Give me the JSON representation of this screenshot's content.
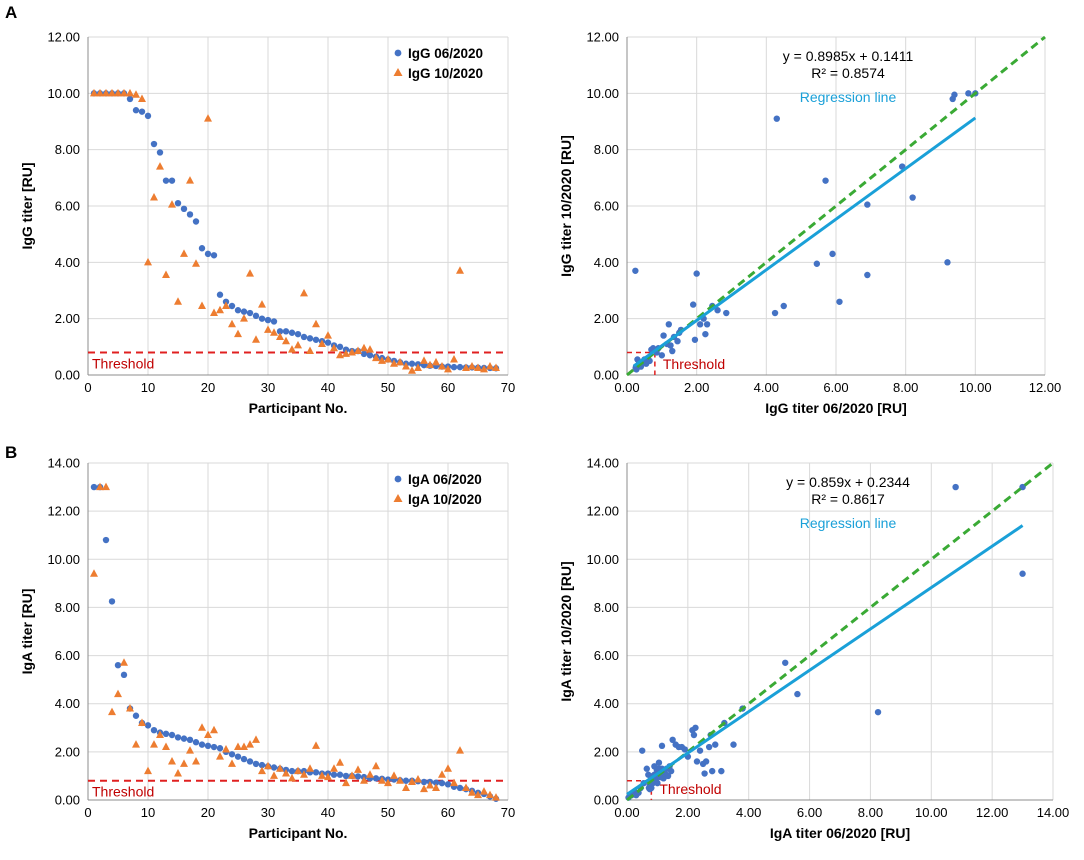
{
  "panels": [
    {
      "label": "A"
    },
    {
      "label": "B"
    }
  ],
  "colors": {
    "blue": "#4472c4",
    "orange": "#ed7d31",
    "threshold": "#e02020",
    "regression": "#1aa0d8",
    "identity": "#3aaa35"
  },
  "chart_data": [
    {
      "id": "igg-participants",
      "type": "scatter",
      "xlabel": "Participant No.",
      "ylabel": "IgG titer [RU]",
      "xlim": [
        0,
        70
      ],
      "ylim": [
        0,
        12
      ],
      "xticks": [
        0,
        10,
        20,
        30,
        40,
        50,
        60,
        70
      ],
      "xtick_labels": [
        "0",
        "10",
        "20",
        "30",
        "40",
        "50",
        "60",
        "70"
      ],
      "yticks": [
        0,
        2,
        4,
        6,
        8,
        10,
        12
      ],
      "ytick_labels": [
        "0.00",
        "2.00",
        "4.00",
        "6.00",
        "8.00",
        "10.00",
        "12.00"
      ],
      "legend_position": "top-right",
      "threshold": {
        "y": 0.8,
        "label": "Threshold"
      },
      "series": [
        {
          "name": "IgG 06/2020",
          "marker": "circle",
          "color": "#4472c4",
          "x": [
            1,
            2,
            3,
            4,
            5,
            6,
            7,
            8,
            9,
            10,
            11,
            12,
            13,
            14,
            15,
            16,
            17,
            18,
            19,
            20,
            21,
            22,
            23,
            24,
            25,
            26,
            27,
            28,
            29,
            30,
            31,
            32,
            33,
            34,
            35,
            36,
            37,
            38,
            39,
            40,
            41,
            42,
            43,
            44,
            45,
            46,
            47,
            48,
            49,
            50,
            51,
            52,
            53,
            54,
            55,
            56,
            57,
            58,
            59,
            60,
            61,
            62,
            63,
            64,
            65,
            66,
            67,
            68
          ],
          "y": [
            10,
            10,
            10,
            10,
            10,
            10,
            9.8,
            9.4,
            9.35,
            9.2,
            8.2,
            7.9,
            6.9,
            6.9,
            6.1,
            5.9,
            5.7,
            5.45,
            4.5,
            4.3,
            4.25,
            2.85,
            2.6,
            2.45,
            2.3,
            2.25,
            2.2,
            2.1,
            2.0,
            1.95,
            1.9,
            1.55,
            1.55,
            1.5,
            1.45,
            1.35,
            1.3,
            1.25,
            1.2,
            1.15,
            1.05,
            1.0,
            0.9,
            0.85,
            0.85,
            0.75,
            0.7,
            0.65,
            0.6,
            0.55,
            0.5,
            0.45,
            0.4,
            0.4,
            0.38,
            0.35,
            0.33,
            0.32,
            0.3,
            0.3,
            0.28,
            0.28,
            0.27,
            0.27,
            0.26,
            0.25,
            0.25,
            0.24
          ]
        },
        {
          "name": "IgG 10/2020",
          "marker": "triangle",
          "color": "#ed7d31",
          "x": [
            1,
            2,
            3,
            4,
            5,
            6,
            7,
            8,
            9,
            10,
            11,
            12,
            13,
            14,
            15,
            16,
            17,
            18,
            19,
            20,
            21,
            22,
            23,
            24,
            25,
            26,
            27,
            28,
            29,
            30,
            31,
            32,
            33,
            34,
            35,
            36,
            37,
            38,
            39,
            40,
            41,
            42,
            43,
            44,
            45,
            46,
            47,
            48,
            49,
            50,
            51,
            52,
            53,
            54,
            55,
            56,
            57,
            58,
            59,
            60,
            61,
            62,
            63,
            64,
            65,
            66,
            67,
            68
          ],
          "y": [
            10,
            10,
            10,
            10,
            10,
            10,
            10,
            9.95,
            9.8,
            4.0,
            6.3,
            7.4,
            3.55,
            6.05,
            2.6,
            4.3,
            6.9,
            3.95,
            2.45,
            9.1,
            2.2,
            2.3,
            2.45,
            1.8,
            1.45,
            2.0,
            3.6,
            1.25,
            2.5,
            1.6,
            1.5,
            1.35,
            1.2,
            0.9,
            1.05,
            2.9,
            0.85,
            1.8,
            1.1,
            1.4,
            0.95,
            0.7,
            0.75,
            0.8,
            0.85,
            0.95,
            0.9,
            0.6,
            0.5,
            0.55,
            0.4,
            0.45,
            0.3,
            0.15,
            0.25,
            0.5,
            0.35,
            0.45,
            0.3,
            0.2,
            0.55,
            3.7,
            0.25,
            0.3,
            0.25,
            0.2,
            0.3,
            0.25
          ]
        }
      ]
    },
    {
      "id": "igg-correlation",
      "type": "scatter",
      "xlabel": "IgG titer 06/2020 [RU]",
      "ylabel": "IgG titer 10/2020 [RU]",
      "xlim": [
        0,
        12
      ],
      "ylim": [
        0,
        12
      ],
      "xticks": [
        0,
        2,
        4,
        6,
        8,
        10,
        12
      ],
      "xtick_labels": [
        "0.00",
        "2.00",
        "4.00",
        "6.00",
        "8.00",
        "10.00",
        "12.00"
      ],
      "yticks": [
        0,
        2,
        4,
        6,
        8,
        10,
        12
      ],
      "ytick_labels": [
        "0.00",
        "2.00",
        "4.00",
        "6.00",
        "8.00",
        "10.00",
        "12.00"
      ],
      "threshold": {
        "value": 0.8,
        "label": "Threshold"
      },
      "equation": "y = 0.8985x + 0.1411",
      "r_squared": "R² = 0.8574",
      "regression_label": "Regression line",
      "regression": {
        "slope": 0.8985,
        "intercept": 0.1411,
        "x_range": [
          0.2,
          10
        ]
      },
      "identity_line": {
        "x_range": [
          0,
          12
        ]
      },
      "series": [
        {
          "name": "IgG 10/2020 vs 06/2020",
          "marker": "circle",
          "color": "#4472c4",
          "x": [
            0.24,
            0.25,
            0.26,
            0.27,
            0.3,
            0.3,
            0.35,
            0.4,
            0.45,
            0.5,
            0.55,
            0.6,
            0.65,
            0.7,
            0.75,
            0.85,
            0.9,
            1.0,
            1.05,
            1.15,
            1.2,
            1.25,
            1.3,
            1.35,
            1.45,
            1.5,
            1.55,
            1.9,
            1.95,
            2.0,
            2.1,
            2.2,
            2.25,
            2.3,
            2.45,
            2.6,
            2.85,
            4.25,
            4.3,
            4.5,
            5.45,
            5.7,
            5.9,
            6.1,
            6.9,
            6.9,
            7.9,
            8.2,
            9.2,
            9.35,
            9.4,
            9.8,
            10
          ],
          "y": [
            3.7,
            0.25,
            0.3,
            0.2,
            0.3,
            0.55,
            0.45,
            0.3,
            0.45,
            0.55,
            0.4,
            0.6,
            0.5,
            0.9,
            0.95,
            0.8,
            0.95,
            0.7,
            1.4,
            1.1,
            1.8,
            1.05,
            0.85,
            1.35,
            1.2,
            1.5,
            1.6,
            2.5,
            1.25,
            3.6,
            1.8,
            2.0,
            1.45,
            1.8,
            2.45,
            2.3,
            2.2,
            2.2,
            9.1,
            2.45,
            3.95,
            6.9,
            4.3,
            2.6,
            6.05,
            3.55,
            7.4,
            6.3,
            4.0,
            9.8,
            9.95,
            10,
            10
          ]
        }
      ]
    },
    {
      "id": "iga-participants",
      "type": "scatter",
      "xlabel": "Participant No.",
      "ylabel": "IgA titer [RU]",
      "xlim": [
        0,
        70
      ],
      "ylim": [
        0,
        14
      ],
      "xticks": [
        0,
        10,
        20,
        30,
        40,
        50,
        60,
        70
      ],
      "xtick_labels": [
        "0",
        "10",
        "20",
        "30",
        "40",
        "50",
        "60",
        "70"
      ],
      "yticks": [
        0,
        2,
        4,
        6,
        8,
        10,
        12,
        14
      ],
      "ytick_labels": [
        "0.00",
        "2.00",
        "4.00",
        "6.00",
        "8.00",
        "10.00",
        "12.00",
        "14.00"
      ],
      "legend_position": "top-right",
      "threshold": {
        "y": 0.8,
        "label": "Threshold"
      },
      "series": [
        {
          "name": "IgA 06/2020",
          "marker": "circle",
          "color": "#4472c4",
          "x": [
            1,
            2,
            3,
            4,
            5,
            6,
            7,
            8,
            9,
            10,
            11,
            12,
            13,
            14,
            15,
            16,
            17,
            18,
            19,
            20,
            21,
            22,
            23,
            24,
            25,
            26,
            27,
            28,
            29,
            30,
            31,
            32,
            33,
            34,
            35,
            36,
            37,
            38,
            39,
            40,
            41,
            42,
            43,
            44,
            45,
            46,
            47,
            48,
            49,
            50,
            51,
            52,
            53,
            54,
            55,
            56,
            57,
            58,
            59,
            60,
            61,
            62,
            63,
            64,
            65,
            66,
            67,
            68
          ],
          "y": [
            13,
            13,
            10.8,
            8.25,
            5.6,
            5.2,
            3.8,
            3.5,
            3.2,
            3.1,
            2.9,
            2.8,
            2.75,
            2.7,
            2.6,
            2.55,
            2.5,
            2.4,
            2.3,
            2.25,
            2.2,
            2.15,
            2.0,
            1.9,
            1.8,
            1.7,
            1.6,
            1.5,
            1.45,
            1.4,
            1.35,
            1.3,
            1.25,
            1.2,
            1.2,
            1.2,
            1.15,
            1.15,
            1.1,
            1.1,
            1.05,
            1.05,
            1.0,
            1.0,
            0.98,
            0.95,
            0.9,
            0.9,
            0.88,
            0.85,
            0.85,
            0.82,
            0.8,
            0.8,
            0.78,
            0.75,
            0.75,
            0.72,
            0.7,
            0.65,
            0.55,
            0.5,
            0.45,
            0.38,
            0.3,
            0.25,
            0.15,
            0.05
          ]
        },
        {
          "name": "IgA 10/2020",
          "marker": "triangle",
          "color": "#ed7d31",
          "x": [
            1,
            2,
            3,
            4,
            5,
            6,
            7,
            8,
            9,
            10,
            11,
            12,
            13,
            14,
            15,
            16,
            17,
            18,
            19,
            20,
            21,
            22,
            23,
            24,
            25,
            26,
            27,
            28,
            29,
            30,
            31,
            32,
            33,
            34,
            35,
            36,
            37,
            38,
            39,
            40,
            41,
            42,
            43,
            44,
            45,
            46,
            47,
            48,
            49,
            50,
            51,
            52,
            53,
            54,
            55,
            56,
            57,
            58,
            59,
            60,
            61,
            62,
            63,
            64,
            65,
            66,
            67,
            68
          ],
          "y": [
            9.4,
            13,
            13,
            3.65,
            4.4,
            5.7,
            3.8,
            2.3,
            3.2,
            1.2,
            2.3,
            2.7,
            2.2,
            1.6,
            1.1,
            1.5,
            2.05,
            1.6,
            3.0,
            2.7,
            2.9,
            1.8,
            2.1,
            1.5,
            2.2,
            2.2,
            2.3,
            2.5,
            1.2,
            1.4,
            1.0,
            1.3,
            1.1,
            0.9,
            1.2,
            1.05,
            1.3,
            2.25,
            1.0,
            0.95,
            1.3,
            1.55,
            0.7,
            1.0,
            1.25,
            0.8,
            1.05,
            1.4,
            0.8,
            0.7,
            1.0,
            0.8,
            0.5,
            0.75,
            0.85,
            0.45,
            0.6,
            0.5,
            1.05,
            1.3,
            0.7,
            2.05,
            0.5,
            0.3,
            0.2,
            0.35,
            0.2,
            0.1
          ]
        }
      ]
    },
    {
      "id": "iga-correlation",
      "type": "scatter",
      "xlabel": "IgA titer 06/2020 [RU]",
      "ylabel": "IgA titer 10/2020 [RU]",
      "xlim": [
        0,
        14
      ],
      "ylim": [
        0,
        14
      ],
      "xticks": [
        0,
        2,
        4,
        6,
        8,
        10,
        12,
        14
      ],
      "xtick_labels": [
        "0.00",
        "2.00",
        "4.00",
        "6.00",
        "8.00",
        "10.00",
        "12.00",
        "14.00"
      ],
      "yticks": [
        0,
        2,
        4,
        6,
        8,
        10,
        12,
        14
      ],
      "ytick_labels": [
        "0.00",
        "2.00",
        "4.00",
        "6.00",
        "8.00",
        "10.00",
        "12.00",
        "14.00"
      ],
      "threshold": {
        "value": 0.8,
        "label": "Threshold"
      },
      "equation": "y = 0.859x + 0.2344",
      "r_squared": "R² = 0.8617",
      "regression_label": "Regression line",
      "regression": {
        "slope": 0.859,
        "intercept": 0.2344,
        "x_range": [
          0,
          13
        ]
      },
      "identity_line": {
        "x_range": [
          0,
          14
        ]
      },
      "series": [
        {
          "name": "IgA 10/2020 vs 06/2020",
          "marker": "circle",
          "color": "#4472c4",
          "x": [
            0.05,
            0.15,
            0.25,
            0.3,
            0.38,
            0.45,
            0.5,
            0.55,
            0.65,
            0.7,
            0.72,
            0.75,
            0.75,
            0.78,
            0.8,
            0.8,
            0.82,
            0.85,
            0.85,
            0.88,
            0.9,
            0.9,
            0.95,
            0.98,
            1.0,
            1.0,
            1.05,
            1.05,
            1.1,
            1.1,
            1.15,
            1.15,
            1.2,
            1.2,
            1.2,
            1.25,
            1.3,
            1.35,
            1.4,
            1.45,
            1.5,
            1.6,
            1.7,
            1.8,
            1.9,
            2.0,
            2.15,
            2.2,
            2.25,
            2.3,
            2.4,
            2.5,
            2.55,
            2.6,
            2.7,
            2.75,
            2.8,
            2.9,
            3.1,
            3.2,
            3.5,
            3.8,
            5.2,
            5.6,
            8.25,
            10.8,
            13,
            13
          ],
          "y": [
            0.1,
            0.2,
            0.35,
            0.2,
            0.3,
            0.5,
            2.05,
            0.7,
            1.3,
            1.05,
            0.5,
            0.6,
            0.45,
            0.85,
            0.75,
            0.5,
            0.8,
            0.7,
            1.0,
            0.8,
            1.05,
            1.4,
            0.8,
            1.25,
            1.0,
            0.7,
            1.55,
            1.3,
            1.0,
            0.95,
            2.25,
            1.3,
            1.05,
            1.2,
            0.9,
            1.1,
            1.3,
            1.0,
            1.4,
            1.2,
            2.5,
            2.3,
            2.2,
            2.2,
            2.1,
            1.8,
            2.9,
            2.7,
            3.0,
            1.6,
            2.05,
            1.5,
            1.1,
            1.6,
            2.2,
            2.7,
            1.2,
            2.3,
            1.2,
            3.2,
            2.3,
            3.8,
            5.7,
            4.4,
            3.65,
            13,
            13,
            9.4
          ]
        }
      ]
    }
  ]
}
